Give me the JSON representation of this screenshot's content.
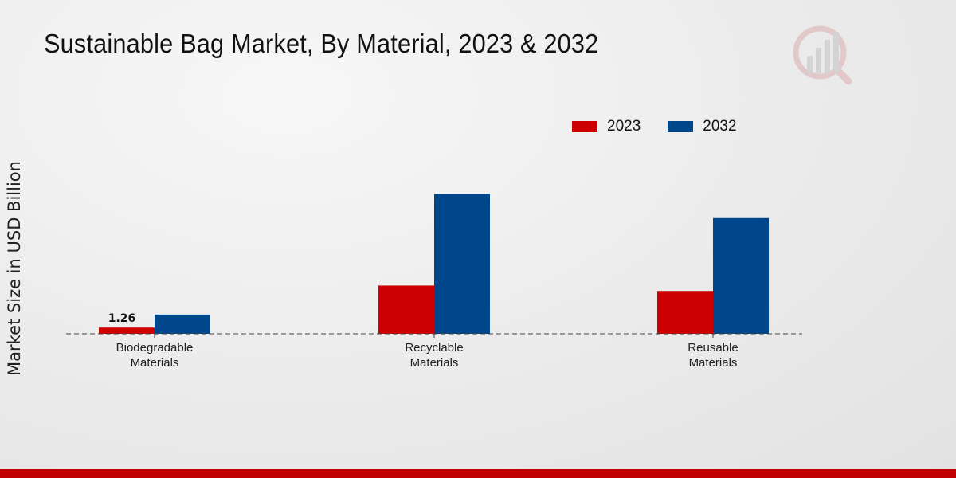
{
  "colors": {
    "series_2023": "#cc0000",
    "series_2032": "#00468b",
    "accent": "#c00000"
  },
  "logo": {
    "icon": "chart-magnifier-icon"
  },
  "chart_data": {
    "type": "bar",
    "title": "Sustainable Bag Market, By Material, 2023 & 2032",
    "xlabel": "",
    "ylabel": "Market Size in USD Billion",
    "categories": [
      [
        "Biodegradable",
        "Materials"
      ],
      [
        "Recyclable",
        "Materials"
      ],
      [
        "Reusable",
        "Materials"
      ]
    ],
    "series": [
      {
        "name": "2023",
        "values": [
          1.26,
          9.8,
          8.7
        ]
      },
      {
        "name": "2032",
        "values": [
          3.9,
          28.4,
          23.5
        ]
      }
    ],
    "data_labels": [
      {
        "series": 0,
        "index": 0,
        "text": "1.26"
      }
    ],
    "ylim": [
      0,
      50
    ],
    "grid": false,
    "legend": "top-right"
  }
}
